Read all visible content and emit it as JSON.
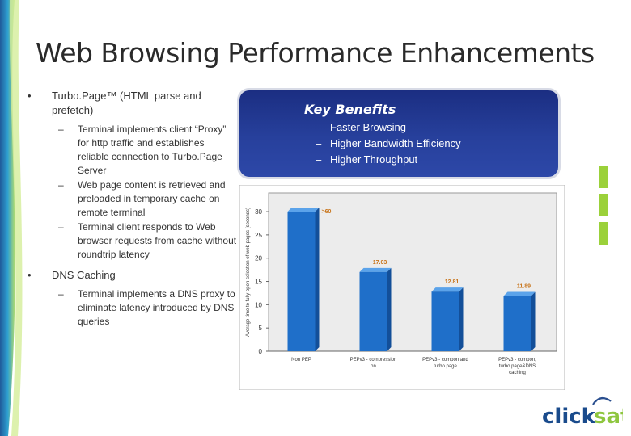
{
  "title": "Web Browsing Performance Enhancements",
  "bullets": [
    {
      "text": "Turbo.Page™ (HTML parse and prefetch)",
      "subs": [
        "Terminal implements client “Proxy” for http traffic and establishes reliable connection to Turbo.Page Server",
        "Web page content is retrieved and preloaded in temporary cache on remote terminal",
        "Terminal client responds to Web browser requests from cache without roundtrip latency"
      ]
    },
    {
      "text": "DNS Caching",
      "subs": [
        "Terminal implements a DNS proxy to eliminate latency introduced by DNS queries"
      ]
    }
  ],
  "key_benefits": {
    "title": "Key Benefits",
    "items": [
      "Faster Browsing",
      "Higher Bandwidth Efficiency",
      "Higher Throughput"
    ]
  },
  "chart_data": {
    "type": "bar",
    "categories": [
      "Non PEP",
      "PEPv3 - compression on",
      "PEPv3 - compon and turbo page",
      "PEPv3 - compon, turbo page&DNS caching"
    ],
    "values": [
      30,
      17.03,
      12.81,
      11.89
    ],
    "data_labels": [
      ">60",
      "17.03",
      "12.81",
      "11.89"
    ],
    "ylabel": "Average time to fully open selection of web pages (seconds)",
    "ylim": [
      0,
      34
    ],
    "yticks": [
      0,
      5,
      10,
      15,
      20,
      25,
      30
    ],
    "bar_color": "#1f6fc9",
    "label_color": "#c8741a"
  },
  "logo": {
    "text": "clicksat",
    "colors": [
      "#1a4b8c",
      "#8ec63f"
    ]
  }
}
